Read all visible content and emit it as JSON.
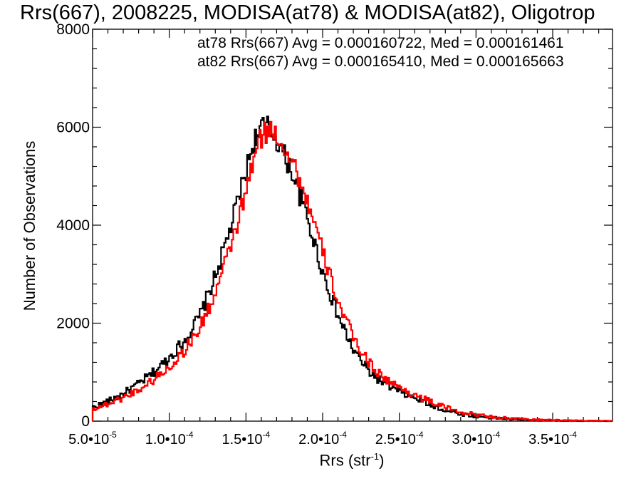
{
  "chart_data": {
    "type": "histogram-step",
    "title": "Rrs(667), 2008225, MODISA(at78) & MODISA(at82), Oligotrop",
    "xlabel_base": "Rrs (str",
    "xlabel_exp": "-1",
    "xlabel_close": ")",
    "ylabel": "Number of Observations",
    "xlim": [
      5e-05,
      0.000389
    ],
    "ylim": [
      0,
      8000
    ],
    "xticks": [
      {
        "value": 5e-05,
        "mant": "5.0",
        "exp": "-5"
      },
      {
        "value": 0.0001,
        "mant": "1.0",
        "exp": "-4"
      },
      {
        "value": 0.00015,
        "mant": "1.5",
        "exp": "-4"
      },
      {
        "value": 0.0002,
        "mant": "2.0",
        "exp": "-4"
      },
      {
        "value": 0.00025,
        "mant": "2.5",
        "exp": "-4"
      },
      {
        "value": 0.0003,
        "mant": "3.0",
        "exp": "-4"
      },
      {
        "value": 0.00035,
        "mant": "3.5",
        "exp": "-4"
      }
    ],
    "yticks": [
      0,
      2000,
      4000,
      6000,
      8000
    ],
    "series": [
      {
        "name": "at78",
        "color": "#000000",
        "legend": "at78 Rrs(667) Avg = 0.000160722, Med = 0.000161461",
        "x": [
          5e-05,
          6e-05,
          7e-05,
          8e-05,
          9e-05,
          0.0001,
          0.00011,
          0.00012,
          0.00013,
          0.00014,
          0.00015,
          0.000155,
          0.00016,
          0.000165,
          0.00017,
          0.00018,
          0.00019,
          0.0002,
          0.00021,
          0.00022,
          0.00023,
          0.00024,
          0.00025,
          0.00026,
          0.00027,
          0.00028,
          0.00029,
          0.0003,
          0.00031,
          0.00032,
          0.00033,
          0.00034,
          0.00035,
          0.00036,
          0.00037,
          0.00038,
          0.000389
        ],
        "y": [
          280,
          400,
          560,
          760,
          1000,
          1300,
          1650,
          2150,
          2950,
          3950,
          5100,
          5700,
          6000,
          6000,
          5750,
          5100,
          4150,
          3050,
          2150,
          1450,
          1020,
          760,
          600,
          470,
          340,
          220,
          150,
          100,
          70,
          45,
          30,
          20,
          15,
          10,
          6,
          4,
          2
        ]
      },
      {
        "name": "at82",
        "color": "#ff0000",
        "legend": "at82 Rrs(667) Avg = 0.000165410, Med = 0.000165663",
        "x": [
          5e-05,
          6e-05,
          7e-05,
          8e-05,
          9e-05,
          0.0001,
          0.00011,
          0.00012,
          0.00013,
          0.00014,
          0.00015,
          0.000155,
          0.00016,
          0.000165,
          0.00017,
          0.00018,
          0.00019,
          0.0002,
          0.00021,
          0.00022,
          0.00023,
          0.00024,
          0.00025,
          0.00026,
          0.00027,
          0.00028,
          0.00029,
          0.0003,
          0.00031,
          0.00032,
          0.00033,
          0.00034,
          0.00035,
          0.00036,
          0.00037,
          0.00038,
          0.000389
        ],
        "y": [
          250,
          350,
          480,
          640,
          850,
          1100,
          1450,
          1900,
          2600,
          3550,
          4650,
          5350,
          5800,
          5950,
          5850,
          5350,
          4500,
          3450,
          2450,
          1700,
          1200,
          880,
          680,
          540,
          400,
          280,
          190,
          130,
          90,
          60,
          40,
          28,
          20,
          14,
          8,
          5,
          3
        ]
      }
    ]
  }
}
